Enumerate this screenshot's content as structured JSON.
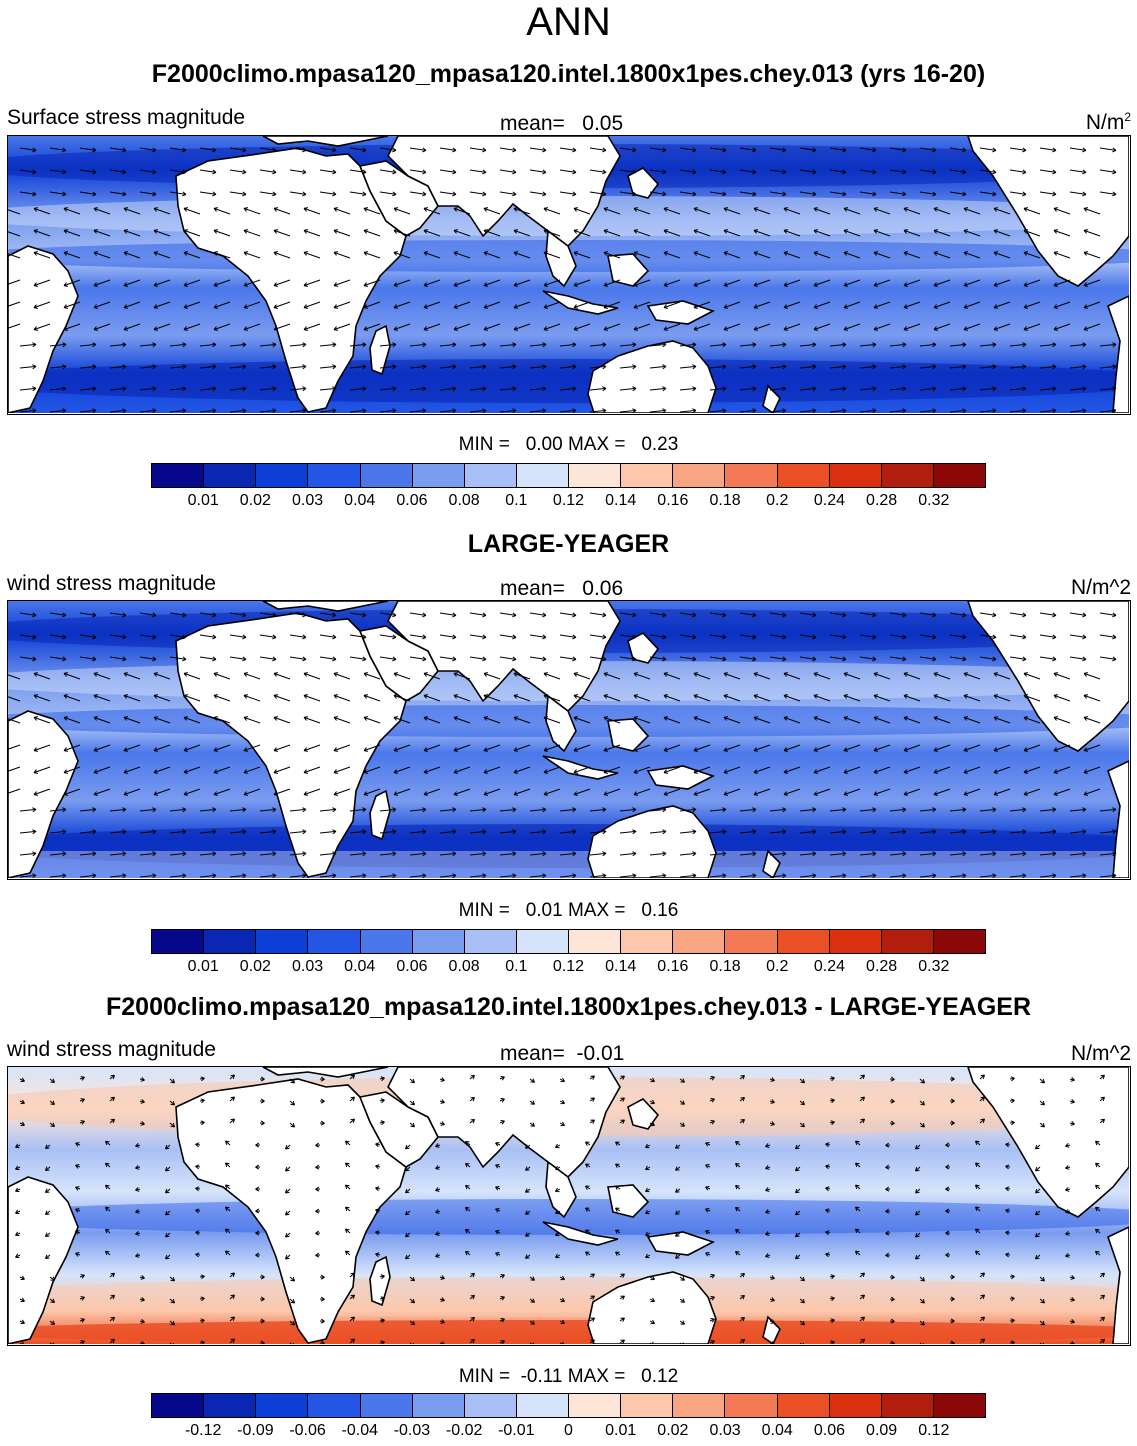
{
  "figure": {
    "title": "ANN"
  },
  "panels": [
    {
      "title": "F2000climo.mpasa120_mpasa120.intel.1800x1pes.chey.013 (yrs 16-20)",
      "left_label": "Surface stress magnitude",
      "mean_label": "mean=   0.05",
      "units_base": "N/m",
      "units_sup": "2",
      "min_max": "MIN =   0.00 MAX =   0.23",
      "colorbar": {
        "labels": [
          "0.01",
          "0.02",
          "0.03",
          "0.04",
          "0.06",
          "0.08",
          "0.1",
          "0.12",
          "0.14",
          "0.16",
          "0.18",
          "0.2",
          "0.24",
          "0.28",
          "0.32"
        ],
        "colors": [
          "#08088c",
          "#0a27b4",
          "#0d3fd6",
          "#2457e6",
          "#4a77ea",
          "#7a9cf0",
          "#a8c0f5",
          "#d6e4fb",
          "#fde6d8",
          "#fcc7ab",
          "#f8a583",
          "#f37a55",
          "#ea4f25",
          "#d9300f",
          "#b21e0e",
          "#8c0707"
        ]
      },
      "field": {
        "levels": [
          "#08088c",
          "#0a27b4",
          "#0d3fd6",
          "#2457e6",
          "#4a77ea",
          "#7a9cf0",
          "#a8c0f5",
          "#d6e4fb",
          "#fde6d8"
        ]
      }
    },
    {
      "title": "LARGE-YEAGER",
      "left_label": "wind stress magnitude",
      "mean_label": "mean=   0.06",
      "units_text": "N/m^2",
      "min_max": "MIN =   0.01 MAX =   0.16",
      "colorbar": {
        "labels": [
          "0.01",
          "0.02",
          "0.03",
          "0.04",
          "0.06",
          "0.08",
          "0.1",
          "0.12",
          "0.14",
          "0.16",
          "0.18",
          "0.2",
          "0.24",
          "0.28",
          "0.32"
        ],
        "colors": [
          "#08088c",
          "#0a27b4",
          "#0d3fd6",
          "#2457e6",
          "#4a77ea",
          "#7a9cf0",
          "#a8c0f5",
          "#d6e4fb",
          "#fde6d8",
          "#fcc7ab",
          "#f8a583",
          "#f37a55",
          "#ea4f25",
          "#d9300f",
          "#b21e0e",
          "#8c0707"
        ]
      }
    },
    {
      "title": "F2000climo.mpasa120_mpasa120.intel.1800x1pes.chey.013 - LARGE-YEAGER",
      "left_label": "wind stress magnitude",
      "mean_label": "mean=  -0.01",
      "units_text": "N/m^2",
      "min_max": "MIN =  -0.11 MAX =   0.12",
      "colorbar": {
        "labels": [
          "-0.12",
          "-0.09",
          "-0.06",
          "-0.04",
          "-0.03",
          "-0.02",
          "-0.01",
          "0",
          "0.01",
          "0.02",
          "0.03",
          "0.04",
          "0.06",
          "0.09",
          "0.12"
        ],
        "colors": [
          "#08088c",
          "#0a27b4",
          "#0d3fd6",
          "#2457e6",
          "#4a77ea",
          "#7a9cf0",
          "#a8c0f5",
          "#d6e4fb",
          "#fde6d8",
          "#fcc7ab",
          "#f8a583",
          "#f37a55",
          "#ea4f25",
          "#d9300f",
          "#b21e0e",
          "#8c0707"
        ]
      }
    }
  ]
}
